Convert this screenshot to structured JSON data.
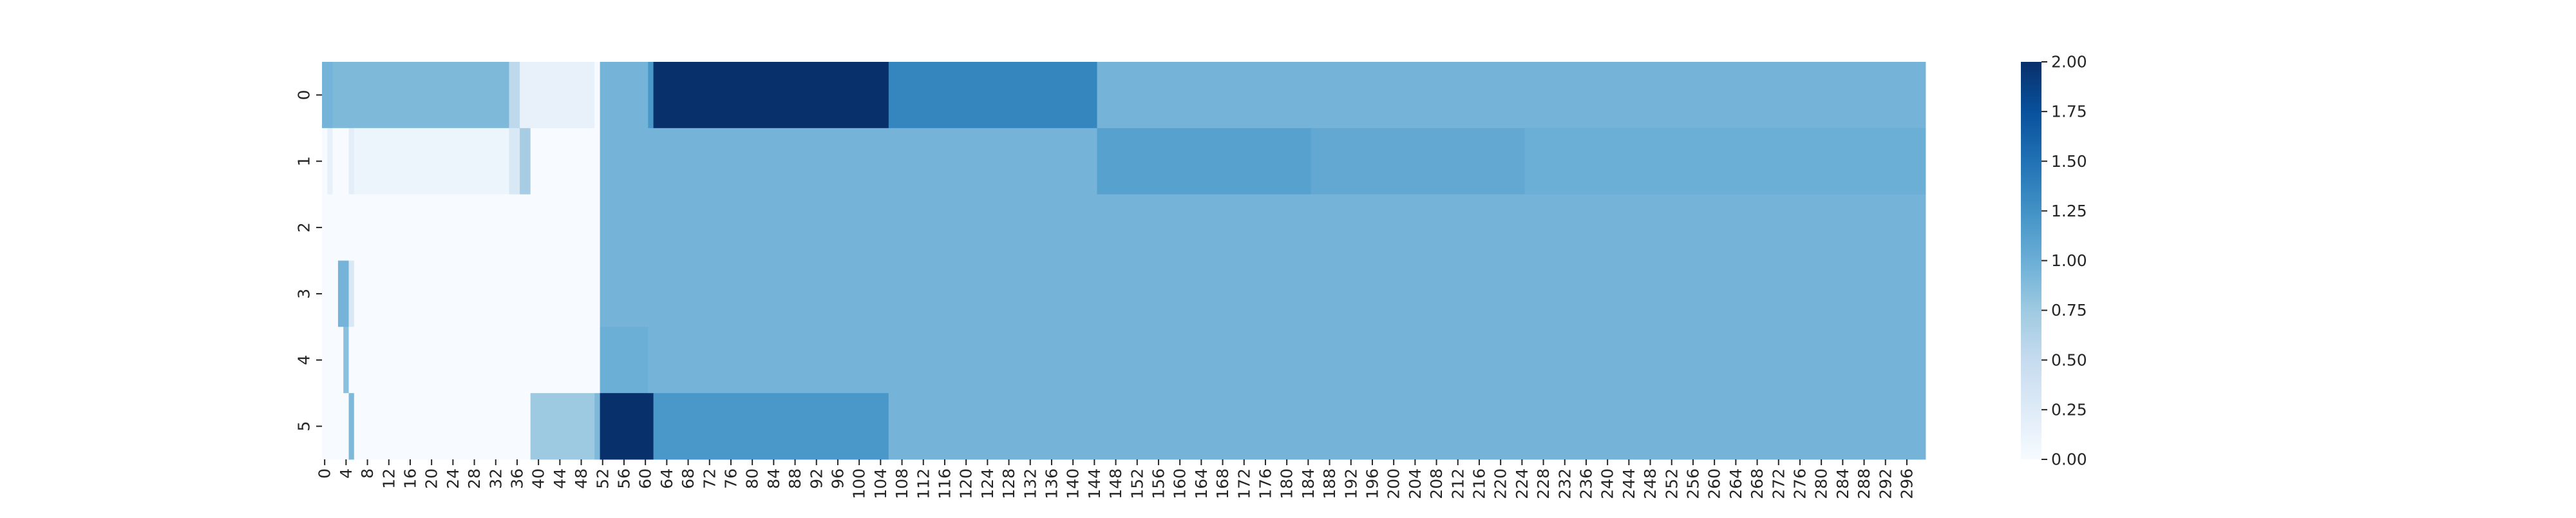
{
  "chart_data": {
    "type": "heatmap",
    "title": "",
    "xlabel": "",
    "ylabel": "",
    "colormap": "Blues",
    "vmin": 0,
    "vmax": 2,
    "n_columns": 300,
    "rows": [
      "0",
      "1",
      "2",
      "3",
      "4",
      "5"
    ],
    "x_tick_labels": [
      "0",
      "4",
      "8",
      "12",
      "16",
      "20",
      "24",
      "28",
      "32",
      "36",
      "40",
      "44",
      "48",
      "52",
      "56",
      "60",
      "64",
      "68",
      "72",
      "76",
      "80",
      "84",
      "88",
      "92",
      "96",
      "100",
      "104",
      "108",
      "112",
      "116",
      "120",
      "124",
      "128",
      "132",
      "136",
      "140",
      "144",
      "148",
      "152",
      "156",
      "160",
      "164",
      "168",
      "172",
      "176",
      "180",
      "184",
      "188",
      "192",
      "196",
      "200",
      "204",
      "208",
      "212",
      "216",
      "220",
      "224",
      "228",
      "232",
      "236",
      "240",
      "244",
      "248",
      "252",
      "256",
      "260",
      "264",
      "268",
      "272",
      "276",
      "280",
      "284",
      "288",
      "292",
      "296"
    ],
    "colorbar_ticks": [
      "0.00",
      "0.25",
      "0.50",
      "0.75",
      "1.00",
      "1.25",
      "1.50",
      "1.75",
      "2.00"
    ],
    "row_segments": [
      {
        "row": "0",
        "segments": [
          {
            "from": 0,
            "to": 1,
            "value": 0.95
          },
          {
            "from": 2,
            "to": 34,
            "value": 0.9
          },
          {
            "from": 35,
            "to": 36,
            "value": 0.55
          },
          {
            "from": 37,
            "to": 50,
            "value": 0.15
          },
          {
            "from": 51,
            "to": 51,
            "value": 0.0
          },
          {
            "from": 52,
            "to": 60,
            "value": 0.95
          },
          {
            "from": 61,
            "to": 61,
            "value": 1.2
          },
          {
            "from": 62,
            "to": 105,
            "value": 2.0
          },
          {
            "from": 106,
            "to": 144,
            "value": 1.35
          },
          {
            "from": 145,
            "to": 299,
            "value": 0.95
          }
        ]
      },
      {
        "row": "1",
        "segments": [
          {
            "from": 0,
            "to": 0,
            "value": 0.0
          },
          {
            "from": 1,
            "to": 1,
            "value": 0.15
          },
          {
            "from": 2,
            "to": 4,
            "value": 0.0
          },
          {
            "from": 5,
            "to": 5,
            "value": 0.2
          },
          {
            "from": 6,
            "to": 34,
            "value": 0.1
          },
          {
            "from": 35,
            "to": 36,
            "value": 0.3
          },
          {
            "from": 37,
            "to": 38,
            "value": 0.7
          },
          {
            "from": 39,
            "to": 51,
            "value": 0.0
          },
          {
            "from": 52,
            "to": 144,
            "value": 0.95
          },
          {
            "from": 145,
            "to": 184,
            "value": 1.12
          },
          {
            "from": 185,
            "to": 224,
            "value": 1.05
          },
          {
            "from": 225,
            "to": 299,
            "value": 1.0
          }
        ]
      },
      {
        "row": "2",
        "segments": [
          {
            "from": 0,
            "to": 51,
            "value": 0.0
          },
          {
            "from": 52,
            "to": 299,
            "value": 0.95
          }
        ]
      },
      {
        "row": "3",
        "segments": [
          {
            "from": 0,
            "to": 2,
            "value": 0.0
          },
          {
            "from": 3,
            "to": 4,
            "value": 0.95
          },
          {
            "from": 5,
            "to": 5,
            "value": 0.3
          },
          {
            "from": 6,
            "to": 51,
            "value": 0.0
          },
          {
            "from": 52,
            "to": 299,
            "value": 0.95
          }
        ]
      },
      {
        "row": "4",
        "segments": [
          {
            "from": 0,
            "to": 3,
            "value": 0.0
          },
          {
            "from": 4,
            "to": 4,
            "value": 0.85
          },
          {
            "from": 5,
            "to": 51,
            "value": 0.0
          },
          {
            "from": 52,
            "to": 60,
            "value": 1.0
          },
          {
            "from": 61,
            "to": 299,
            "value": 0.95
          }
        ]
      },
      {
        "row": "5",
        "segments": [
          {
            "from": 0,
            "to": 4,
            "value": 0.0
          },
          {
            "from": 5,
            "to": 5,
            "value": 0.9
          },
          {
            "from": 6,
            "to": 38,
            "value": 0.0
          },
          {
            "from": 39,
            "to": 50,
            "value": 0.75
          },
          {
            "from": 51,
            "to": 51,
            "value": 0.9
          },
          {
            "from": 52,
            "to": 61,
            "value": 2.0
          },
          {
            "from": 62,
            "to": 105,
            "value": 1.2
          },
          {
            "from": 106,
            "to": 299,
            "value": 0.95
          }
        ]
      }
    ]
  }
}
